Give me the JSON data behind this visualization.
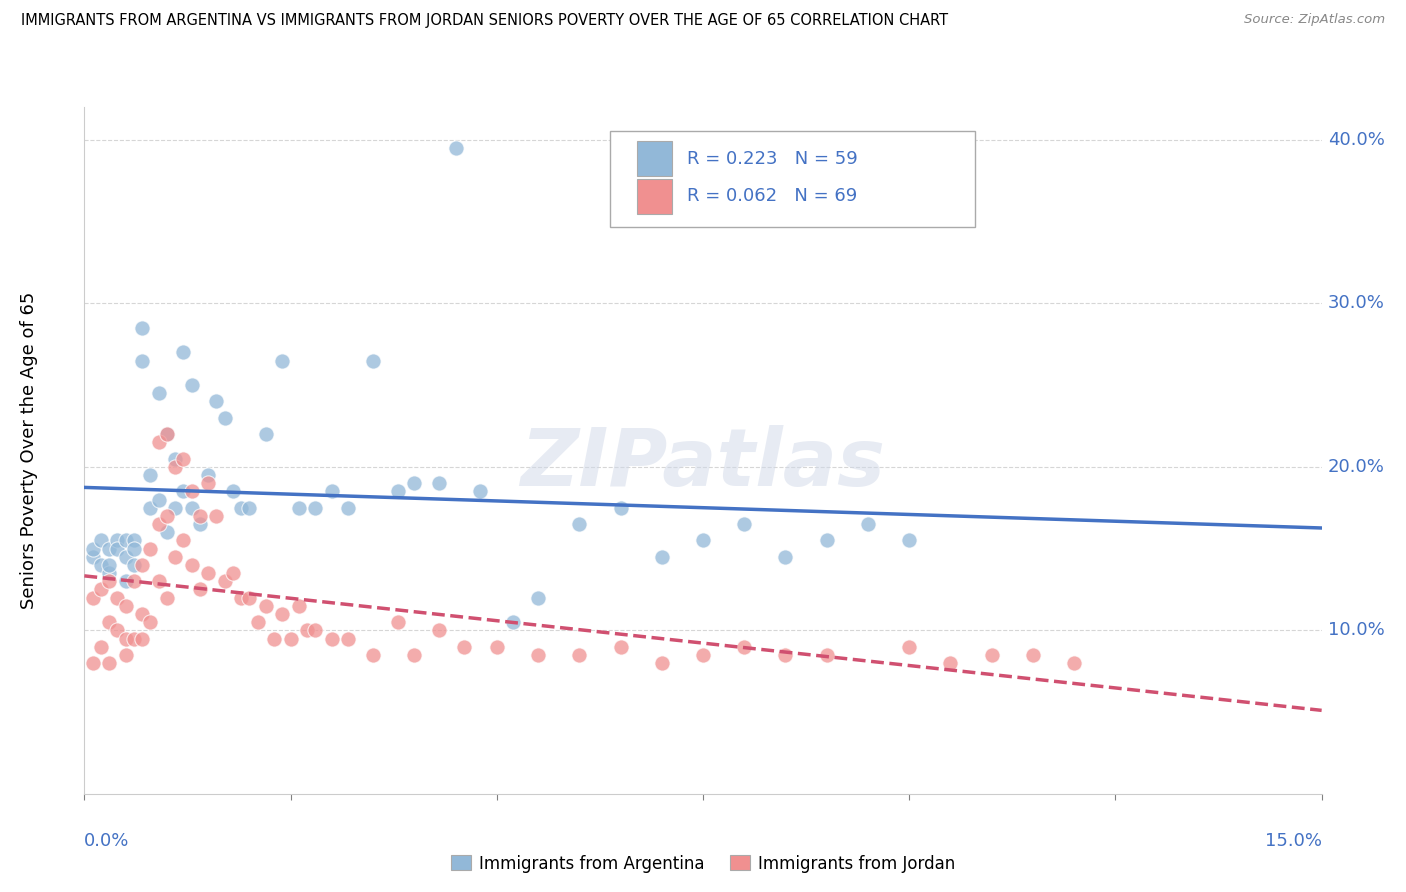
{
  "title": "IMMIGRANTS FROM ARGENTINA VS IMMIGRANTS FROM JORDAN SENIORS POVERTY OVER THE AGE OF 65 CORRELATION CHART",
  "source": "Source: ZipAtlas.com",
  "ylabel_left": "Seniors Poverty Over the Age of 65",
  "legend_entries": [
    {
      "label": "R = 0.223   N = 59",
      "color": "#a8c8e8"
    },
    {
      "label": "R = 0.062   N = 69",
      "color": "#f4b8c8"
    }
  ],
  "argentina_color": "#92b8d8",
  "jordan_color": "#f09090",
  "argentina_line_color": "#4472c4",
  "jordan_line_color": "#d05070",
  "background_color": "#ffffff",
  "watermark_text": "ZIPatlas",
  "xlim": [
    0.0,
    0.15
  ],
  "ylim": [
    0.0,
    0.42
  ],
  "yticks": [
    0.1,
    0.2,
    0.3,
    0.4
  ],
  "ytick_labels": [
    "10.0%",
    "20.0%",
    "30.0%",
    "40.0%"
  ],
  "argentina_R": 0.223,
  "jordan_R": 0.062,
  "argentina_scatter_x": [
    0.001,
    0.001,
    0.002,
    0.002,
    0.003,
    0.003,
    0.003,
    0.004,
    0.004,
    0.005,
    0.005,
    0.005,
    0.006,
    0.006,
    0.006,
    0.007,
    0.007,
    0.008,
    0.008,
    0.009,
    0.009,
    0.01,
    0.01,
    0.011,
    0.011,
    0.012,
    0.012,
    0.013,
    0.013,
    0.014,
    0.015,
    0.016,
    0.017,
    0.018,
    0.019,
    0.02,
    0.022,
    0.024,
    0.026,
    0.028,
    0.03,
    0.032,
    0.035,
    0.038,
    0.04,
    0.043,
    0.045,
    0.048,
    0.052,
    0.055,
    0.06,
    0.065,
    0.07,
    0.075,
    0.08,
    0.085,
    0.09,
    0.095,
    0.1
  ],
  "argentina_scatter_y": [
    0.145,
    0.15,
    0.14,
    0.155,
    0.15,
    0.135,
    0.14,
    0.155,
    0.15,
    0.155,
    0.13,
    0.145,
    0.155,
    0.14,
    0.15,
    0.265,
    0.285,
    0.175,
    0.195,
    0.18,
    0.245,
    0.22,
    0.16,
    0.205,
    0.175,
    0.185,
    0.27,
    0.25,
    0.175,
    0.165,
    0.195,
    0.24,
    0.23,
    0.185,
    0.175,
    0.175,
    0.22,
    0.265,
    0.175,
    0.175,
    0.185,
    0.175,
    0.265,
    0.185,
    0.19,
    0.19,
    0.395,
    0.185,
    0.105,
    0.12,
    0.165,
    0.175,
    0.145,
    0.155,
    0.165,
    0.145,
    0.155,
    0.165,
    0.155
  ],
  "jordan_scatter_x": [
    0.001,
    0.001,
    0.002,
    0.002,
    0.003,
    0.003,
    0.003,
    0.004,
    0.004,
    0.005,
    0.005,
    0.005,
    0.006,
    0.006,
    0.007,
    0.007,
    0.007,
    0.008,
    0.008,
    0.009,
    0.009,
    0.009,
    0.01,
    0.01,
    0.01,
    0.011,
    0.011,
    0.012,
    0.012,
    0.013,
    0.013,
    0.014,
    0.014,
    0.015,
    0.015,
    0.016,
    0.017,
    0.018,
    0.019,
    0.02,
    0.021,
    0.022,
    0.023,
    0.024,
    0.025,
    0.026,
    0.027,
    0.028,
    0.03,
    0.032,
    0.035,
    0.038,
    0.04,
    0.043,
    0.046,
    0.05,
    0.055,
    0.06,
    0.065,
    0.07,
    0.075,
    0.08,
    0.085,
    0.09,
    0.1,
    0.105,
    0.11,
    0.115,
    0.12
  ],
  "jordan_scatter_y": [
    0.12,
    0.08,
    0.125,
    0.09,
    0.13,
    0.105,
    0.08,
    0.12,
    0.1,
    0.115,
    0.085,
    0.095,
    0.13,
    0.095,
    0.14,
    0.11,
    0.095,
    0.15,
    0.105,
    0.215,
    0.165,
    0.13,
    0.22,
    0.17,
    0.12,
    0.2,
    0.145,
    0.205,
    0.155,
    0.185,
    0.14,
    0.17,
    0.125,
    0.19,
    0.135,
    0.17,
    0.13,
    0.135,
    0.12,
    0.12,
    0.105,
    0.115,
    0.095,
    0.11,
    0.095,
    0.115,
    0.1,
    0.1,
    0.095,
    0.095,
    0.085,
    0.105,
    0.085,
    0.1,
    0.09,
    0.09,
    0.085,
    0.085,
    0.09,
    0.08,
    0.085,
    0.09,
    0.085,
    0.085,
    0.09,
    0.08,
    0.085,
    0.085,
    0.08
  ]
}
